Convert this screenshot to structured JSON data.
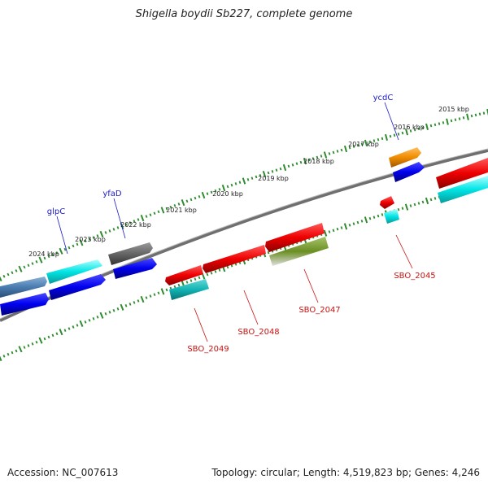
{
  "title": "Shigella boydii Sb227, complete genome",
  "footer": {
    "accession": "Accession: NC_007613",
    "summary": "Topology: circular; Length: 4,519,823 bp; Genes: 4,246"
  },
  "colors": {
    "backbone": "#7a7a7a",
    "tick": "#2e8b2e",
    "label_forward": "#1a1acc",
    "label_reverse": "#cc1111"
  },
  "ticks": [
    "2015 kbp",
    "2016 kbp",
    "2017 kbp",
    "2018 kbp",
    "2019 kbp",
    "2020 kbp",
    "2021 kbp",
    "2022 kbp",
    "2023 kbp",
    "2024 kbp"
  ],
  "gene_labels": [
    {
      "text": "ycdC",
      "strand": "forward"
    },
    {
      "text": "yfaD",
      "strand": "forward"
    },
    {
      "text": "glpC",
      "strand": "forward"
    },
    {
      "text": "SBO_2045",
      "strand": "reverse"
    },
    {
      "text": "SBO_2047",
      "strand": "reverse"
    },
    {
      "text": "SBO_2048",
      "strand": "reverse"
    },
    {
      "text": "SBO_2049",
      "strand": "reverse"
    }
  ]
}
